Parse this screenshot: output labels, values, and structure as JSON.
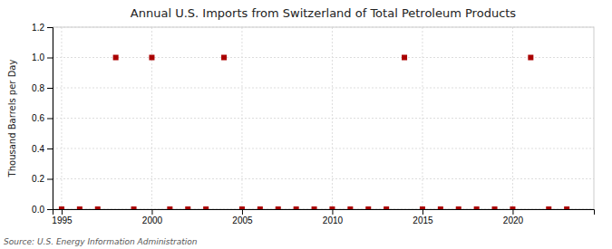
{
  "chart_data": {
    "type": "scatter",
    "title": "Annual U.S. Imports from Switzerland of Total Petroleum Products",
    "y_label": "Thousand Barrels per Day",
    "source": "Source: U.S. Energy Information Administration",
    "x": [
      1995,
      1996,
      1997,
      1998,
      1999,
      2000,
      2001,
      2002,
      2003,
      2004,
      2005,
      2006,
      2007,
      2008,
      2009,
      2010,
      2011,
      2012,
      2013,
      2014,
      2015,
      2016,
      2017,
      2018,
      2019,
      2020,
      2021,
      2022,
      2023
    ],
    "values": [
      0,
      0,
      0,
      1,
      0,
      1,
      0,
      0,
      0,
      1,
      0,
      0,
      0,
      0,
      0,
      0,
      0,
      0,
      0,
      1,
      0,
      0,
      0,
      0,
      0,
      0,
      1,
      0,
      0
    ],
    "color": "#aa0000",
    "marker": "square",
    "xlim": [
      1994.5,
      2024.5
    ],
    "xticks": [
      1995,
      2000,
      2005,
      2010,
      2015,
      2020
    ],
    "ylim": [
      0,
      1.2
    ],
    "yticks": [
      {
        "value": 0,
        "label": "0.0"
      },
      0.2,
      0.4,
      0.6,
      0.8,
      {
        "value": 1,
        "label": "1.0"
      },
      1.2
    ],
    "grid": true
  }
}
